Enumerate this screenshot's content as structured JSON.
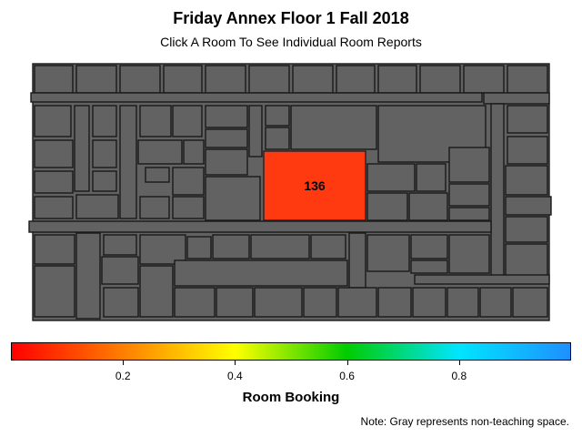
{
  "header": {
    "title": "Friday Annex Floor 1 Fall 2018",
    "subtitle": "Click A Room To See Individual Room Reports"
  },
  "floor": {
    "non_teaching_color": "#626262",
    "highlighted_room": {
      "label": "136",
      "booking": 0.05,
      "color": "#ff3a10"
    }
  },
  "legend": {
    "title": "Room Booking",
    "ticks": [
      "0.2",
      "0.4",
      "0.6",
      "0.8"
    ],
    "tick_values": [
      0.2,
      0.4,
      0.6,
      0.8
    ],
    "range": [
      0,
      1
    ],
    "colors": [
      "#ff0000",
      "#ff7f00",
      "#ffff00",
      "#00cc00",
      "#00e5ff",
      "#1e90ff"
    ]
  },
  "note": "Note: Gray represents non-teaching space."
}
